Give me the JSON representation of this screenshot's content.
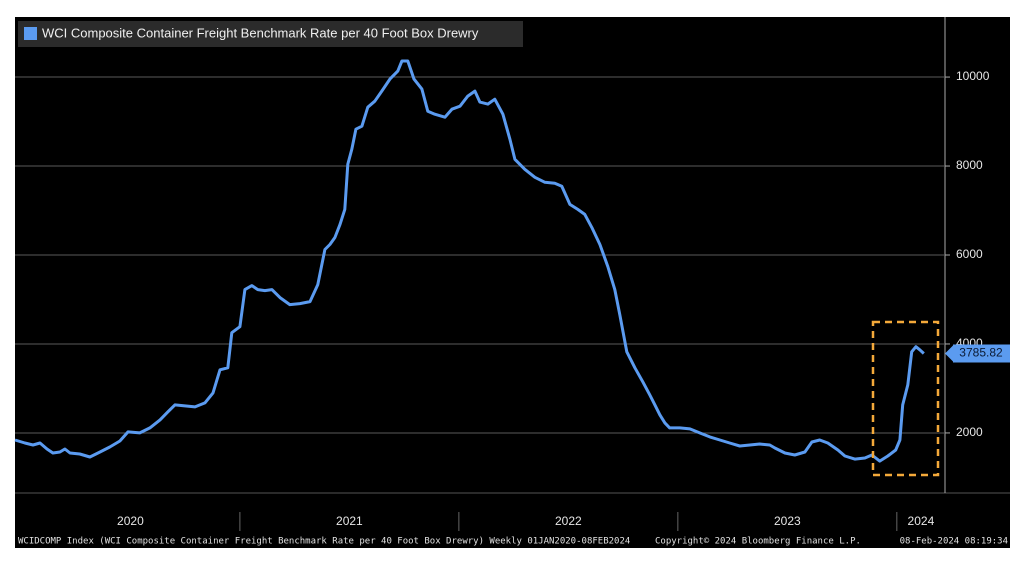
{
  "chart_data": {
    "type": "line",
    "series": [
      {
        "name": "WCI Composite Container Freight Benchmark Rate per 40 Foot Box Drewry",
        "color": "#5b9bf0",
        "x": [
          2019.973,
          2020.018,
          2020.055,
          2020.087,
          2020.119,
          2020.146,
          2020.178,
          2020.201,
          2020.224,
          2020.269,
          2020.315,
          2020.361,
          2020.406,
          2020.452,
          2020.489,
          2020.543,
          2020.589,
          2020.635,
          2020.671,
          2020.703,
          2020.749,
          2020.795,
          2020.84,
          2020.877,
          2020.909,
          2020.945,
          2020.963,
          2021.0,
          2021.023,
          2021.055,
          2021.082,
          2021.114,
          2021.146,
          2021.183,
          2021.228,
          2021.274,
          2021.32,
          2021.356,
          2021.388,
          2021.411,
          2021.434,
          2021.457,
          2021.479,
          2021.493,
          2021.511,
          2021.53,
          2021.557,
          2021.584,
          2021.616,
          2021.648,
          2021.685,
          2021.721,
          2021.74,
          2021.767,
          2021.795,
          2021.831,
          2021.858,
          2021.89,
          2021.936,
          2021.968,
          2022.005,
          2022.041,
          2022.073,
          2022.096,
          2022.132,
          2022.164,
          2022.201,
          2022.233,
          2022.256,
          2022.301,
          2022.347,
          2022.393,
          2022.438,
          2022.47,
          2022.507,
          2022.543,
          2022.575,
          2022.607,
          2022.644,
          2022.68,
          2022.712,
          2022.735,
          2022.767,
          2022.804,
          2022.84,
          2022.872,
          2022.895,
          2022.918,
          2022.941,
          2022.963,
          2023.009,
          2023.055,
          2023.1,
          2023.146,
          2023.192,
          2023.237,
          2023.283,
          2023.329,
          2023.374,
          2023.42,
          2023.443,
          2023.489,
          2023.534,
          2023.58,
          2023.612,
          2023.648,
          2023.685,
          2023.731,
          2023.763,
          2023.808,
          2023.854,
          2023.886,
          2023.922,
          2023.959,
          2023.995,
          2024.014,
          2024.027,
          2024.05,
          2024.068,
          2024.087,
          2024.105,
          2024.123
        ],
        "values": [
          1842,
          1775,
          1730,
          1775,
          1640,
          1550,
          1572,
          1640,
          1550,
          1527,
          1460,
          1572,
          1685,
          1820,
          2023,
          2000,
          2113,
          2293,
          2473,
          2630,
          2608,
          2586,
          2676,
          2901,
          3420,
          3465,
          4254,
          4389,
          5222,
          5313,
          5222,
          5200,
          5222,
          5042,
          4885,
          4907,
          4952,
          5335,
          6124,
          6236,
          6394,
          6687,
          7025,
          8039,
          8377,
          8828,
          8895,
          9323,
          9458,
          9684,
          9954,
          10135,
          10360,
          10360,
          9954,
          9729,
          9232,
          9165,
          9097,
          9278,
          9345,
          9571,
          9684,
          9436,
          9391,
          9503,
          9165,
          8603,
          8152,
          7927,
          7746,
          7634,
          7611,
          7544,
          7138,
          7025,
          6913,
          6620,
          6236,
          5741,
          5222,
          4659,
          3825,
          3465,
          3149,
          2856,
          2630,
          2406,
          2226,
          2113,
          2113,
          2090,
          2000,
          1910,
          1842,
          1775,
          1707,
          1730,
          1752,
          1730,
          1662,
          1550,
          1505,
          1572,
          1797,
          1842,
          1775,
          1617,
          1481,
          1413,
          1436,
          1505,
          1368,
          1481,
          1617,
          1842,
          2631,
          3081,
          3825,
          3938,
          3870,
          3785.82
        ]
      }
    ],
    "xlim": [
      2019.973,
      2024.22
    ],
    "ylim": [
      650,
      11350
    ],
    "xticks": [
      {
        "value": 2020.5,
        "label": "2020"
      },
      {
        "value": 2021.5,
        "label": "2021"
      },
      {
        "value": 2022.5,
        "label": "2022"
      },
      {
        "value": 2023.5,
        "label": "2023"
      },
      {
        "value": 2024.11,
        "label": "2024"
      }
    ],
    "yticks": [
      2000,
      4000,
      6000,
      8000,
      10000
    ],
    "grid": true,
    "legend": "upper left",
    "footer": {
      "source": "WCIDCOMP Index (WCI Composite Container Freight Benchmark Rate per 40 Foot Box Drewry) Weekly 01JAN2020-08FEB2024",
      "copyright": "Copyright© 2024 Bloomberg Finance L.P.",
      "timestamp": "08-Feb-2024 08:19:34"
    }
  }
}
